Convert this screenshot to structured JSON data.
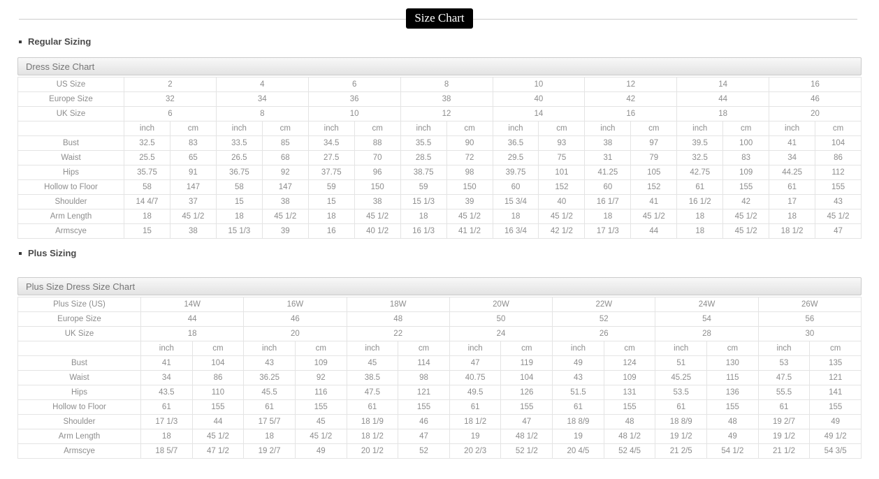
{
  "page": {
    "title": "Size Chart"
  },
  "sections": {
    "regular": {
      "heading": "Regular Sizing"
    },
    "plus": {
      "heading": "Plus Sizing"
    }
  },
  "regular_table": {
    "title": "Dress Size Chart",
    "units": [
      "inch",
      "cm"
    ],
    "size_rows": [
      {
        "label": "US Size",
        "values": [
          "2",
          "4",
          "6",
          "8",
          "10",
          "12",
          "14",
          "16"
        ]
      },
      {
        "label": "Europe Size",
        "values": [
          "32",
          "34",
          "36",
          "38",
          "40",
          "42",
          "44",
          "46"
        ]
      },
      {
        "label": "UK Size",
        "values": [
          "6",
          "8",
          "10",
          "12",
          "14",
          "16",
          "18",
          "20"
        ]
      }
    ],
    "measure_rows": [
      {
        "label": "Bust",
        "pairs": [
          [
            "32.5",
            "83"
          ],
          [
            "33.5",
            "85"
          ],
          [
            "34.5",
            "88"
          ],
          [
            "35.5",
            "90"
          ],
          [
            "36.5",
            "93"
          ],
          [
            "38",
            "97"
          ],
          [
            "39.5",
            "100"
          ],
          [
            "41",
            "104"
          ]
        ]
      },
      {
        "label": "Waist",
        "pairs": [
          [
            "25.5",
            "65"
          ],
          [
            "26.5",
            "68"
          ],
          [
            "27.5",
            "70"
          ],
          [
            "28.5",
            "72"
          ],
          [
            "29.5",
            "75"
          ],
          [
            "31",
            "79"
          ],
          [
            "32.5",
            "83"
          ],
          [
            "34",
            "86"
          ]
        ]
      },
      {
        "label": "Hips",
        "pairs": [
          [
            "35.75",
            "91"
          ],
          [
            "36.75",
            "92"
          ],
          [
            "37.75",
            "96"
          ],
          [
            "38.75",
            "98"
          ],
          [
            "39.75",
            "101"
          ],
          [
            "41.25",
            "105"
          ],
          [
            "42.75",
            "109"
          ],
          [
            "44.25",
            "112"
          ]
        ]
      },
      {
        "label": "Hollow to Floor",
        "pairs": [
          [
            "58",
            "147"
          ],
          [
            "58",
            "147"
          ],
          [
            "59",
            "150"
          ],
          [
            "59",
            "150"
          ],
          [
            "60",
            "152"
          ],
          [
            "60",
            "152"
          ],
          [
            "61",
            "155"
          ],
          [
            "61",
            "155"
          ]
        ]
      },
      {
        "label": "Shoulder",
        "pairs": [
          [
            "14 4/7",
            "37"
          ],
          [
            "15",
            "38"
          ],
          [
            "15",
            "38"
          ],
          [
            "15 1/3",
            "39"
          ],
          [
            "15 3/4",
            "40"
          ],
          [
            "16 1/7",
            "41"
          ],
          [
            "16 1/2",
            "42"
          ],
          [
            "17",
            "43"
          ]
        ]
      },
      {
        "label": "Arm Length",
        "pairs": [
          [
            "18",
            "45 1/2"
          ],
          [
            "18",
            "45 1/2"
          ],
          [
            "18",
            "45 1/2"
          ],
          [
            "18",
            "45 1/2"
          ],
          [
            "18",
            "45 1/2"
          ],
          [
            "18",
            "45 1/2"
          ],
          [
            "18",
            "45 1/2"
          ],
          [
            "18",
            "45 1/2"
          ]
        ]
      },
      {
        "label": "Armscye",
        "pairs": [
          [
            "15",
            "38"
          ],
          [
            "15 1/3",
            "39"
          ],
          [
            "16",
            "40 1/2"
          ],
          [
            "16 1/3",
            "41 1/2"
          ],
          [
            "16 3/4",
            "42 1/2"
          ],
          [
            "17 1/3",
            "44"
          ],
          [
            "18",
            "45 1/2"
          ],
          [
            "18 1/2",
            "47"
          ]
        ]
      }
    ]
  },
  "plus_table": {
    "title": "Plus Size Dress Size Chart",
    "units": [
      "inch",
      "cm"
    ],
    "size_rows": [
      {
        "label": "Plus Size (US)",
        "values": [
          "14W",
          "16W",
          "18W",
          "20W",
          "22W",
          "24W",
          "26W"
        ]
      },
      {
        "label": "Europe Size",
        "values": [
          "44",
          "46",
          "48",
          "50",
          "52",
          "54",
          "56"
        ]
      },
      {
        "label": "UK Size",
        "values": [
          "18",
          "20",
          "22",
          "24",
          "26",
          "28",
          "30"
        ]
      }
    ],
    "measure_rows": [
      {
        "label": "Bust",
        "pairs": [
          [
            "41",
            "104"
          ],
          [
            "43",
            "109"
          ],
          [
            "45",
            "114"
          ],
          [
            "47",
            "119"
          ],
          [
            "49",
            "124"
          ],
          [
            "51",
            "130"
          ],
          [
            "53",
            "135"
          ]
        ]
      },
      {
        "label": "Waist",
        "pairs": [
          [
            "34",
            "86"
          ],
          [
            "36.25",
            "92"
          ],
          [
            "38.5",
            "98"
          ],
          [
            "40.75",
            "104"
          ],
          [
            "43",
            "109"
          ],
          [
            "45.25",
            "115"
          ],
          [
            "47.5",
            "121"
          ]
        ]
      },
      {
        "label": "Hips",
        "pairs": [
          [
            "43.5",
            "110"
          ],
          [
            "45.5",
            "116"
          ],
          [
            "47.5",
            "121"
          ],
          [
            "49.5",
            "126"
          ],
          [
            "51.5",
            "131"
          ],
          [
            "53.5",
            "136"
          ],
          [
            "55.5",
            "141"
          ]
        ]
      },
      {
        "label": "Hollow to Floor",
        "pairs": [
          [
            "61",
            "155"
          ],
          [
            "61",
            "155"
          ],
          [
            "61",
            "155"
          ],
          [
            "61",
            "155"
          ],
          [
            "61",
            "155"
          ],
          [
            "61",
            "155"
          ],
          [
            "61",
            "155"
          ]
        ]
      },
      {
        "label": "Shoulder",
        "pairs": [
          [
            "17 1/3",
            "44"
          ],
          [
            "17 5/7",
            "45"
          ],
          [
            "18 1/9",
            "46"
          ],
          [
            "18 1/2",
            "47"
          ],
          [
            "18 8/9",
            "48"
          ],
          [
            "18 8/9",
            "48"
          ],
          [
            "19 2/7",
            "49"
          ]
        ]
      },
      {
        "label": "Arm Length",
        "pairs": [
          [
            "18",
            "45 1/2"
          ],
          [
            "18",
            "45 1/2"
          ],
          [
            "18 1/2",
            "47"
          ],
          [
            "19",
            "48 1/2"
          ],
          [
            "19",
            "48 1/2"
          ],
          [
            "19 1/2",
            "49"
          ],
          [
            "19 1/2",
            "49 1/2"
          ]
        ]
      },
      {
        "label": "Armscye",
        "pairs": [
          [
            "18 5/7",
            "47 1/2"
          ],
          [
            "19 2/7",
            "49"
          ],
          [
            "20 1/2",
            "52"
          ],
          [
            "20 2/3",
            "52 1/2"
          ],
          [
            "20 4/5",
            "52 4/5"
          ],
          [
            "21 2/5",
            "54 1/2"
          ],
          [
            "21 1/2",
            "54 3/5"
          ]
        ]
      }
    ]
  }
}
